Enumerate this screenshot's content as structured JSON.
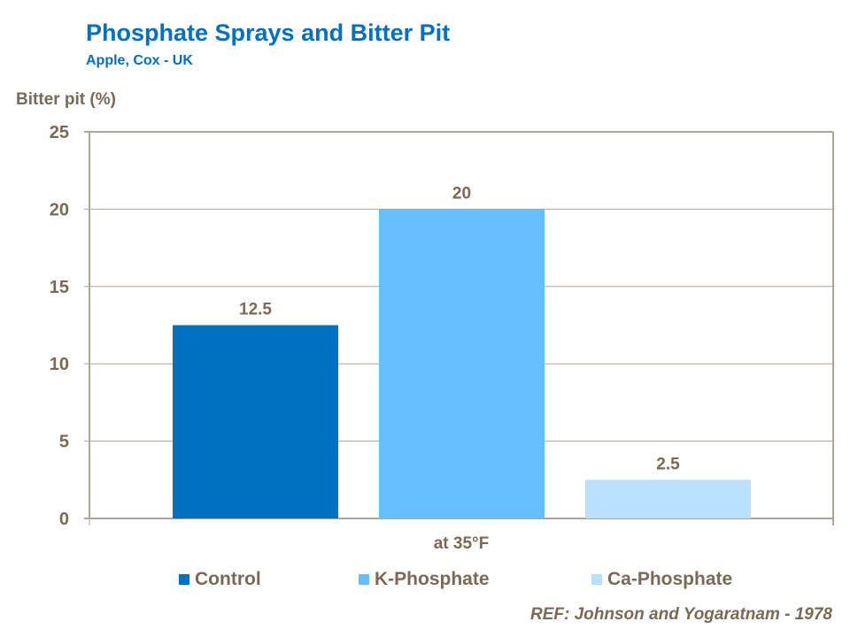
{
  "chart_data": {
    "type": "bar",
    "title": "Phosphate Sprays and Bitter Pit",
    "subtitle": "Apple, Cox - UK",
    "ylabel": "Bitter pit (%)",
    "xlabel": "",
    "categories": [
      "at 35°F"
    ],
    "series": [
      {
        "name": "Control",
        "values": [
          12.5
        ],
        "color": "#0070c0",
        "label": "12.5"
      },
      {
        "name": "K-Phosphate",
        "values": [
          20
        ],
        "color": "#66bfff",
        "label": "20"
      },
      {
        "name": "Ca-Phosphate",
        "values": [
          2.5
        ],
        "color": "#b8e0ff",
        "label": "2.5"
      }
    ],
    "ylim": [
      0,
      25
    ],
    "yticks": [
      "0",
      "5",
      "10",
      "15",
      "20",
      "25"
    ],
    "grid": true,
    "legend": "bottom"
  },
  "reference": "REF: Johnson and Yogaratnam - 1978"
}
